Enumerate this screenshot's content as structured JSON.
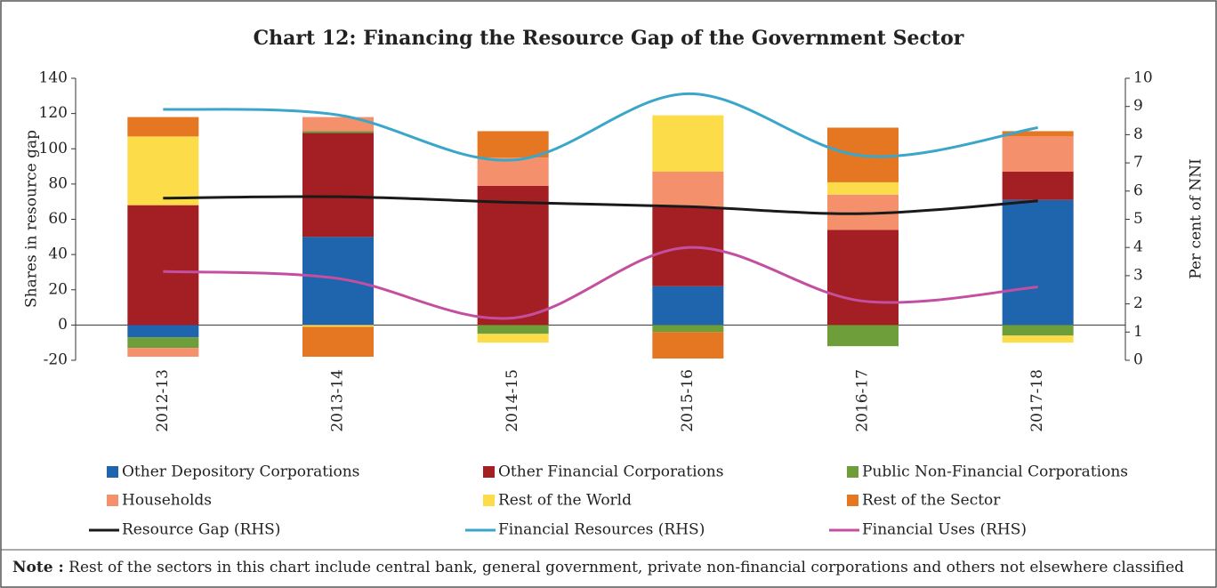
{
  "chart_data": {
    "type": "bar",
    "title": "Chart 12: Financing the Resource Gap of the Government Sector",
    "y_label": "Shares in resource gap",
    "y2_label": "Per cent of NNI",
    "categories": [
      "2012-13",
      "2013-14",
      "2014-15",
      "2015-16",
      "2016-17",
      "2017-18"
    ],
    "series": [
      {
        "name": "Other Depository Corporations",
        "color": "#1f65ad",
        "values": [
          -7,
          50,
          0,
          22,
          0,
          71
        ]
      },
      {
        "name": "Other Financial Corporations",
        "color": "#a31f23",
        "values": [
          68,
          59,
          79,
          45,
          54,
          16
        ]
      },
      {
        "name": "Public Non-Financial Corporations",
        "color": "#6e9e3a",
        "values": [
          -6,
          1,
          -5,
          -4,
          -12,
          -6
        ]
      },
      {
        "name": "Households",
        "color": "#f4906b",
        "values": [
          -5,
          8,
          16,
          20,
          20,
          20
        ]
      },
      {
        "name": "Rest of the World",
        "color": "#fddc4a",
        "values": [
          39,
          -1,
          -5,
          32,
          7,
          -4
        ]
      },
      {
        "name": "Rest of the Sector",
        "color": "#e57722",
        "values": [
          11,
          -17,
          15,
          -15,
          31,
          3
        ]
      },
      {
        "name": "Resource Gap (RHS)",
        "color": "#1a1a1a",
        "type": "line",
        "axis": "y2",
        "values": [
          5.75,
          5.8,
          5.6,
          5.45,
          5.2,
          5.65
        ]
      },
      {
        "name": "Financial Resources (RHS)",
        "color": "#3aa6c9",
        "type": "line",
        "axis": "y2",
        "values": [
          8.9,
          8.7,
          7.1,
          9.45,
          7.25,
          8.25
        ]
      },
      {
        "name": "Financial Uses (RHS)",
        "color": "#c44fa0",
        "type": "line",
        "axis": "y2",
        "values": [
          3.15,
          2.9,
          1.5,
          4.0,
          2.1,
          2.6
        ]
      }
    ],
    "ylim": [
      -20,
      140
    ],
    "yticks": [
      -20,
      0,
      20,
      40,
      60,
      80,
      100,
      120,
      140
    ],
    "y2lim": [
      0,
      10
    ],
    "y2ticks": [
      0,
      1,
      2,
      3,
      4,
      5,
      6,
      7,
      8,
      9,
      10
    ],
    "note_label": "Note :",
    "note": "Rest of the sectors in this chart include central bank, general government, private non-financial corporations and others not elsewhere classified"
  }
}
